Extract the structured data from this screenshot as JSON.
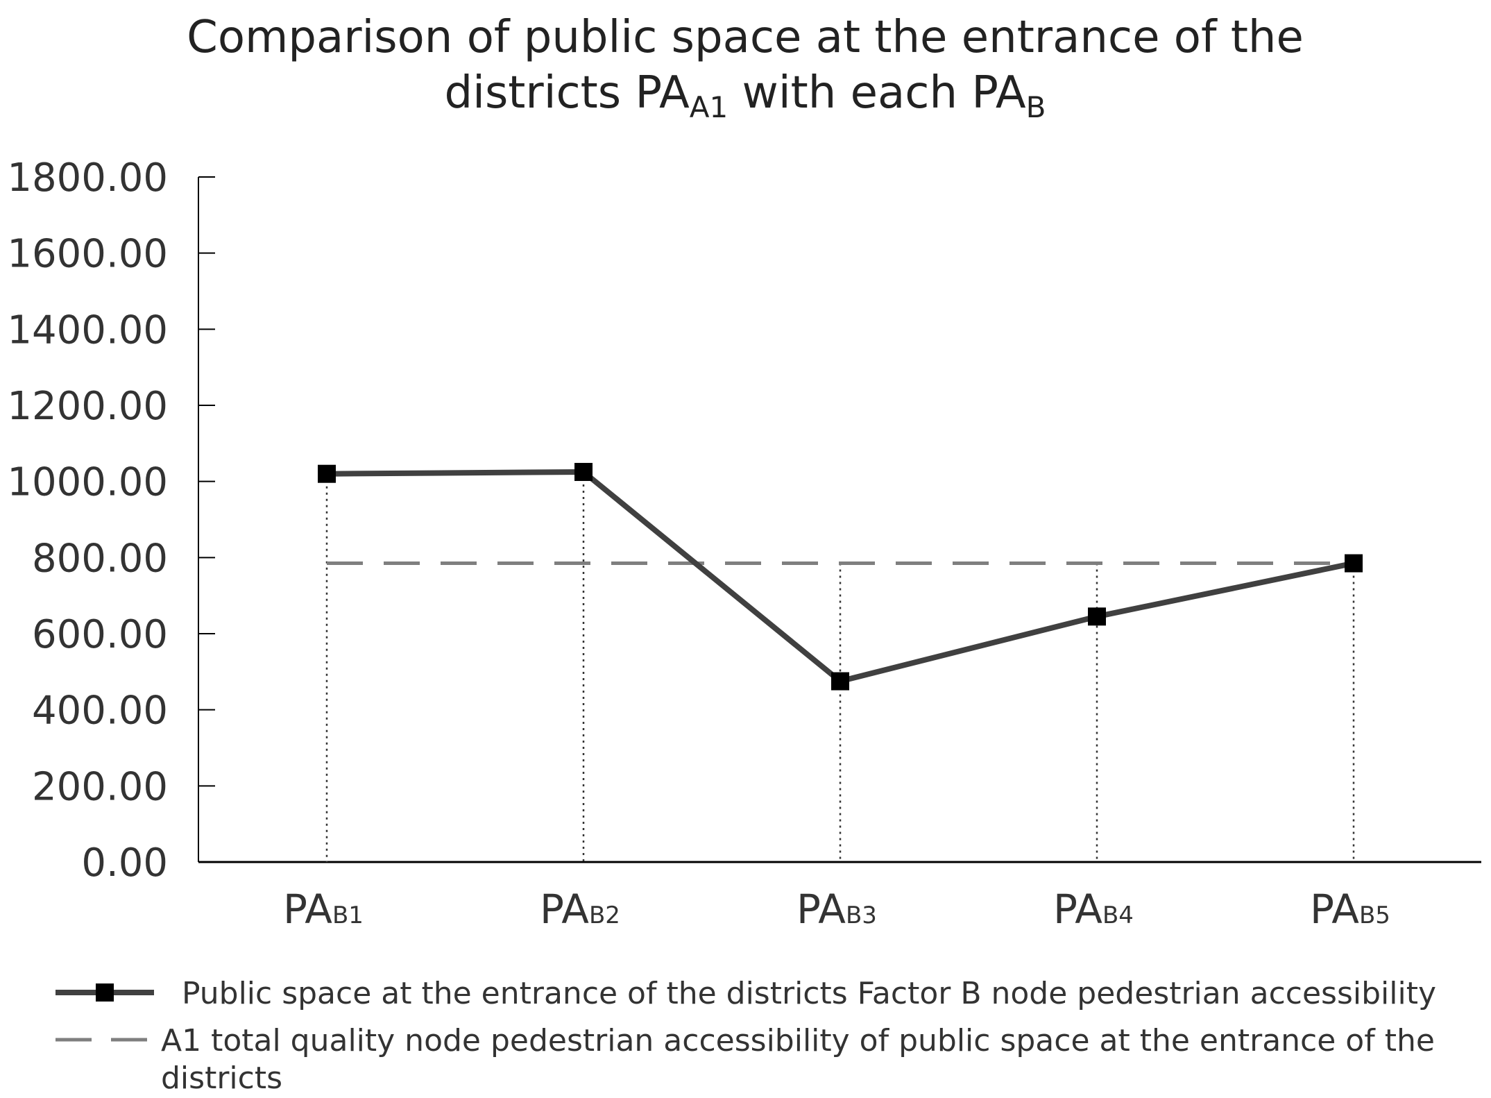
{
  "colors": {
    "series_line": "#404040",
    "marker": "#000000",
    "reference_line": "#7f7f7f",
    "axis": "#000000",
    "drop_line": "#333333"
  },
  "chart_data": {
    "type": "line",
    "title_line1": "Comparison of public space at the entrance of the",
    "title_line2_prefix": "districts PA",
    "title_sub1": "A1",
    "title_line2_mid": " with each PA",
    "title_sub2": "B",
    "categories": [
      {
        "main": "PA",
        "sub": "B1"
      },
      {
        "main": "PA",
        "sub": "B2"
      },
      {
        "main": "PA",
        "sub": "B3"
      },
      {
        "main": "PA",
        "sub": "B4"
      },
      {
        "main": "PA",
        "sub": "B5"
      }
    ],
    "y_ticks": [
      "0.00",
      "200.00",
      "400.00",
      "600.00",
      "800.00",
      "1000.00",
      "1200.00",
      "1400.00",
      "1600.00",
      "1800.00"
    ],
    "ylim": [
      0,
      1800
    ],
    "grid": false,
    "legend_position": "bottom",
    "series": [
      {
        "name": "Public space at the entrance of the districts Factor B node pedestrian accessibility",
        "style": "solid-line-square-markers",
        "values": [
          1020,
          1025,
          475,
          645,
          785
        ]
      },
      {
        "name_line1": "A1 total quality node pedestrian accessibility of public space at the entrance of the",
        "name_line2": "districts",
        "style": "dashed-reference",
        "values": [
          785,
          785,
          785,
          785,
          785
        ]
      }
    ]
  }
}
